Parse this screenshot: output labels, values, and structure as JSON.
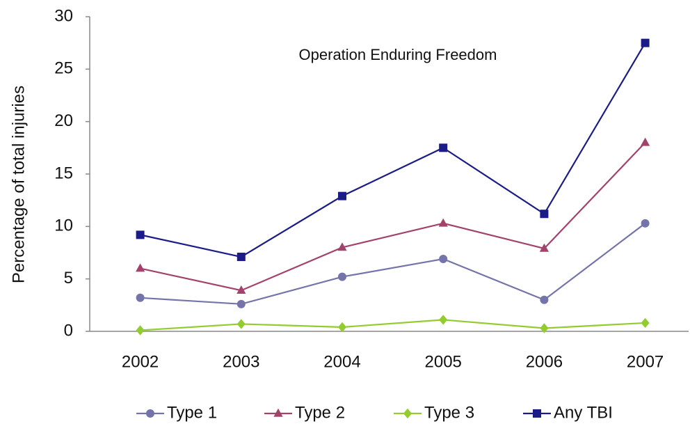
{
  "chart_data": {
    "type": "line",
    "annotation": "Operation Enduring Freedom",
    "y_label": "Percentage of total injuries",
    "categories": [
      "2002",
      "2003",
      "2004",
      "2005",
      "2006",
      "2007"
    ],
    "series": [
      {
        "name": "Type 1",
        "color": "#7474aa",
        "marker": "circle",
        "values": [
          3.2,
          2.6,
          5.2,
          6.9,
          3.0,
          10.3
        ]
      },
      {
        "name": "Type 2",
        "color": "#a3436c",
        "marker": "triangle",
        "values": [
          6.0,
          3.9,
          8.0,
          10.3,
          7.9,
          18.0
        ]
      },
      {
        "name": "Type 3",
        "color": "#92cc2e",
        "marker": "diamond",
        "values": [
          0.1,
          0.7,
          0.4,
          1.1,
          0.3,
          0.8
        ]
      },
      {
        "name": "Any TBI",
        "color": "#1c1c88",
        "marker": "square",
        "values": [
          9.2,
          7.1,
          12.9,
          17.5,
          11.2,
          27.5
        ]
      }
    ],
    "ylim": [
      0,
      30
    ],
    "yticks": [
      0,
      5,
      10,
      15,
      20,
      25,
      30
    ],
    "grid": false,
    "legend": "bottom"
  }
}
